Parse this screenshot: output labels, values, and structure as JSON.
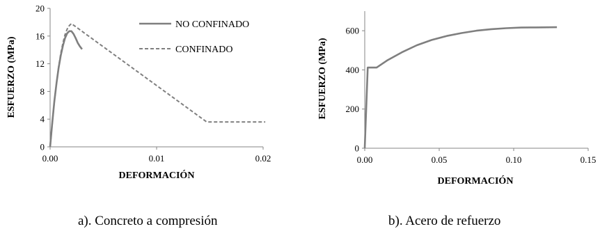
{
  "chart_data": [
    {
      "type": "line",
      "caption": "a). Concreto a compresión",
      "xlabel": "DEFORMACIÓN",
      "ylabel": "ESFUERZO (MPa)",
      "xlim": [
        0,
        0.02
      ],
      "ylim": [
        0,
        20
      ],
      "xticks": [
        0,
        0.01,
        0.02
      ],
      "xtick_labels": [
        "0.00",
        "0.01",
        "0.02"
      ],
      "yticks": [
        0,
        4,
        8,
        12,
        16,
        20
      ],
      "ytick_labels": [
        "0",
        "4",
        "8",
        "12",
        "16",
        "20"
      ],
      "grid": false,
      "legend_position": "top-right",
      "series": [
        {
          "name": "NO CONFINADO",
          "style": "solid",
          "color": "#7f7f7f",
          "x": [
            0,
            0.0002,
            0.0004,
            0.0006,
            0.0008,
            0.001,
            0.0012,
            0.0014,
            0.0016,
            0.0018,
            0.002,
            0.0022,
            0.0024,
            0.0026,
            0.0028,
            0.003
          ],
          "y": [
            0,
            3.5,
            6.6,
            9.2,
            11.4,
            13.2,
            14.6,
            15.7,
            16.4,
            16.7,
            16.7,
            16.3,
            15.7,
            15.0,
            14.5,
            14.1
          ]
        },
        {
          "name": "CONFINADO",
          "style": "dashed",
          "color": "#7f7f7f",
          "x": [
            0,
            0.0002,
            0.0004,
            0.0006,
            0.0008,
            0.001,
            0.0012,
            0.0014,
            0.0016,
            0.0018,
            0.002,
            0.0147,
            0.0202
          ],
          "y": [
            0,
            3.4,
            6.5,
            9.2,
            11.5,
            13.5,
            15.0,
            16.2,
            17.0,
            17.5,
            17.8,
            3.6,
            3.6
          ]
        }
      ]
    },
    {
      "type": "line",
      "caption": "b). Acero de refuerzo",
      "xlabel": "DEFORMACIÓN",
      "ylabel": "ESFUERZO (MPa)",
      "xlim": [
        0,
        0.15
      ],
      "ylim": [
        0,
        700
      ],
      "xticks": [
        0,
        0.05,
        0.1,
        0.15
      ],
      "xtick_labels": [
        "0.00",
        "0.05",
        "0.10",
        "0.15"
      ],
      "yticks": [
        0,
        200,
        400,
        600
      ],
      "ytick_labels": [
        "0",
        "200",
        "400",
        "600"
      ],
      "grid": false,
      "series": [
        {
          "style": "solid",
          "color": "#7f7f7f",
          "x": [
            0,
            0.002,
            0.008,
            0.015,
            0.025,
            0.035,
            0.045,
            0.055,
            0.065,
            0.075,
            0.085,
            0.095,
            0.105,
            0.115,
            0.129
          ],
          "y": [
            0,
            412,
            412,
            448,
            490,
            526,
            553,
            573,
            588,
            600,
            608,
            613,
            616,
            617,
            618
          ]
        }
      ]
    }
  ]
}
